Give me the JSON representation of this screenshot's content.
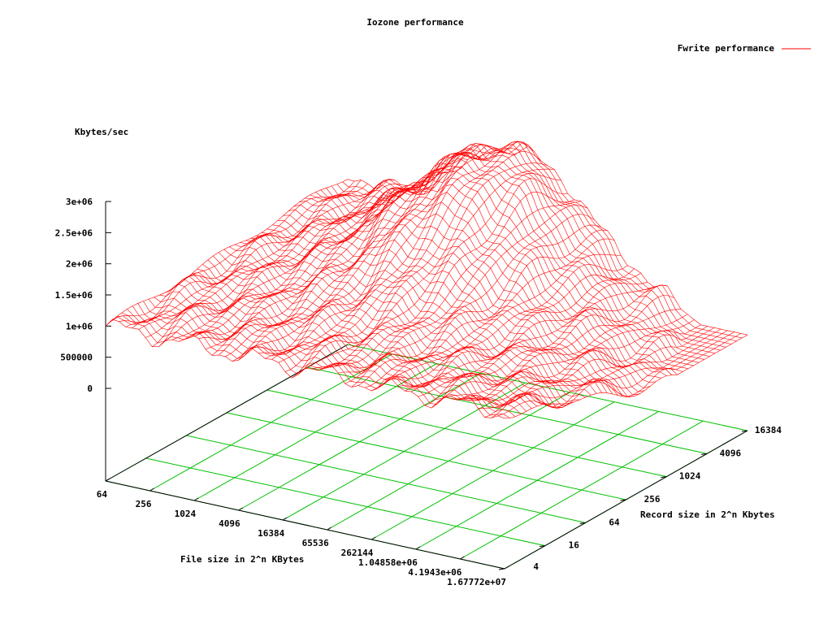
{
  "chart_data": {
    "type": "surface",
    "title": "Iozone performance",
    "legend": {
      "label": "Fwrite performance",
      "position": "top-right",
      "color": "#ff0000"
    },
    "zlabel": "Kbytes/sec",
    "xlabel": "File size in 2^n KBytes",
    "ylabel": "Record size in 2^n Kbytes",
    "zlim": [
      0,
      3000000
    ],
    "z_ticks": [
      "0",
      "500000",
      "1e+06",
      "1.5e+06",
      "2e+06",
      "2.5e+06",
      "3e+06"
    ],
    "x_ticks": [
      "64",
      "256",
      "1024",
      "4096",
      "16384",
      "65536",
      "262144",
      "1.04858e+06",
      "4.1943e+06",
      "1.67772e+07"
    ],
    "y_ticks": [
      "4",
      "16",
      "64",
      "256",
      "1024",
      "4096",
      "16384"
    ],
    "colors": {
      "surface": "#ff0000",
      "grid": "#00c000",
      "axis": "#000000"
    },
    "grid": true,
    "surface_description_kbytes_per_sec": {
      "small_file_small_record": 1000000,
      "small_file_large_record": 1200000,
      "mid_file_large_record_peak": 3000000,
      "large_file_small_record": 1000000,
      "large_file_large_record": 100000
    }
  }
}
